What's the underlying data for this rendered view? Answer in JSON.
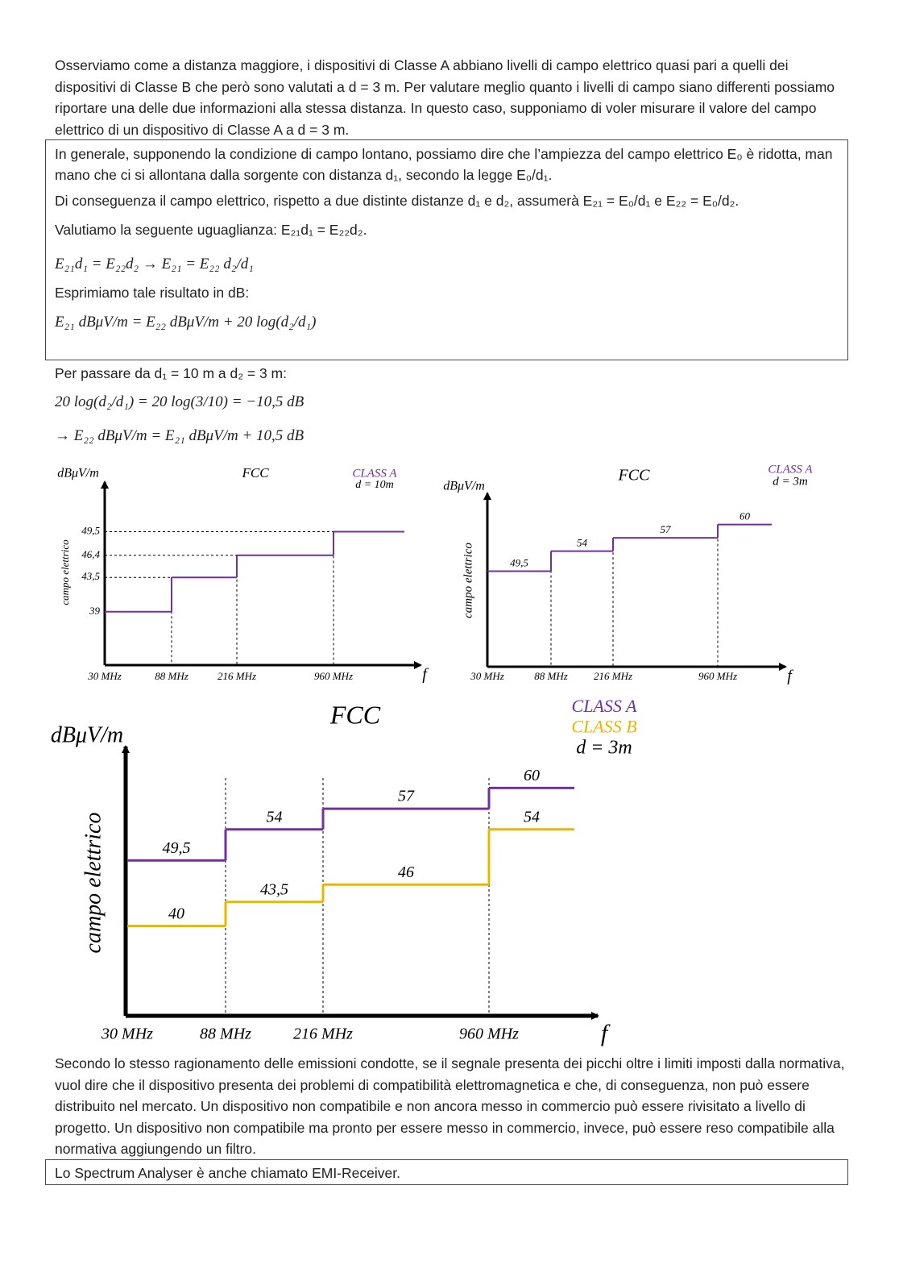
{
  "intro": "Osserviamo come a distanza maggiore, i dispositivi di Classe A abbiano livelli di campo elettrico quasi pari a quelli dei dispositivi di Classe B che però sono valutati a d = 3 m. Per valutare meglio quanto i livelli di campo siano differenti possiamo riportare una delle due informazioni alla stessa distanza. In questo caso, supponiamo di voler misurare il valore del campo elettrico di un dispositivo di Classe A a d = 3 m.",
  "box1": {
    "line1": "In generale, supponendo la condizione di campo lontano, possiamo dire che l’ampiezza del campo elettrico E₀ è ridotta, man mano che ci si allontana dalla sorgente con distanza d₁, secondo la legge E₀/d₁.",
    "line2": "Di conseguenza il campo elettrico, rispetto a due distinte distanze d₁ e d₂, assumerà E₂₁ = E₀/d₁ e E₂₂ = E₀/d₂.",
    "line3": "Valutiamo la seguente uguaglianza: E₂₁d₁ = E₂₂d₂.",
    "formula1": "E₂₁d₁ = E₂₂d₂     → E₂₁ = E₂₂ d₂/d₁",
    "line4": "Esprimiamo tale risultato in dB:",
    "formula2": "E₂₁ dBμV/m = E₂₂ dBμV/m + 20 log(d₂/d₁)"
  },
  "step_intro": "Per passare da d₁ = 10 m a d₂ = 3 m:",
  "formula3": "20 log(d₂/d₁) = 20 log(3/10) = −10,5 dB",
  "formula4": "→ E₂₂ dBμV/m = E₂₁ dBμV/m + 10,5 dB",
  "chart_data": [
    {
      "type": "step",
      "title": "FCC",
      "y_label": "dBμV/m",
      "y_axis_title": "campo elettrico",
      "x_label": "f",
      "annotation": "d = 10m",
      "categories": [
        "30 MHz",
        "88 MHz",
        "216 MHz",
        "960 MHz"
      ],
      "ylim": [
        32,
        56
      ],
      "series": [
        {
          "name": "CLASS A",
          "color": "#7030a0",
          "values": [
            39,
            43.5,
            46.4,
            49.5
          ],
          "value_labels": [
            "39",
            "43,5",
            "46,4",
            "49,5"
          ]
        }
      ]
    },
    {
      "type": "step",
      "title": "FCC",
      "y_label": "dBμV/m",
      "y_axis_title": "campo elettrico",
      "x_label": "f",
      "annotation": "d = 3m",
      "categories": [
        "30 MHz",
        "88 MHz",
        "216 MHz",
        "960 MHz"
      ],
      "ylim": [
        28,
        67
      ],
      "series": [
        {
          "name": "CLASS A",
          "color": "#7030a0",
          "values": [
            49.5,
            54,
            57,
            60
          ],
          "value_labels": [
            "49,5",
            "54",
            "57",
            "60"
          ]
        }
      ]
    },
    {
      "type": "step",
      "title": "FCC",
      "y_label": "dBμV/m",
      "y_axis_title": "campo elettrico",
      "x_label": "f",
      "annotation": "d = 3m",
      "categories": [
        "30 MHz",
        "88 MHz",
        "216 MHz",
        "960 MHz"
      ],
      "ylim": [
        27,
        66
      ],
      "series": [
        {
          "name": "CLASS A",
          "color": "#7030a0",
          "values": [
            49.5,
            54,
            57,
            60
          ],
          "value_labels": [
            "49,5",
            "54",
            "57",
            "60"
          ]
        },
        {
          "name": "CLASS B",
          "color": "#e8b700",
          "values": [
            40,
            43.5,
            46,
            54
          ],
          "value_labels": [
            "40",
            "43,5",
            "46",
            "54"
          ]
        }
      ]
    }
  ],
  "outro": "Secondo lo stesso ragionamento delle emissioni condotte, se il segnale presenta dei picchi oltre i limiti imposti dalla normativa, vuol dire che il dispositivo presenta dei problemi di compatibilità elettromagnetica e che, di conseguenza, non può essere distribuito nel mercato. Un dispositivo non compatibile e non ancora messo in commercio può essere rivisitato a livello di progetto. Un dispositivo non compatibile ma pronto per essere messo in commercio, invece, può essere reso compatibile alla normativa aggiungendo un filtro.",
  "box2": "Lo Spectrum Analyser è anche chiamato EMI-Receiver."
}
